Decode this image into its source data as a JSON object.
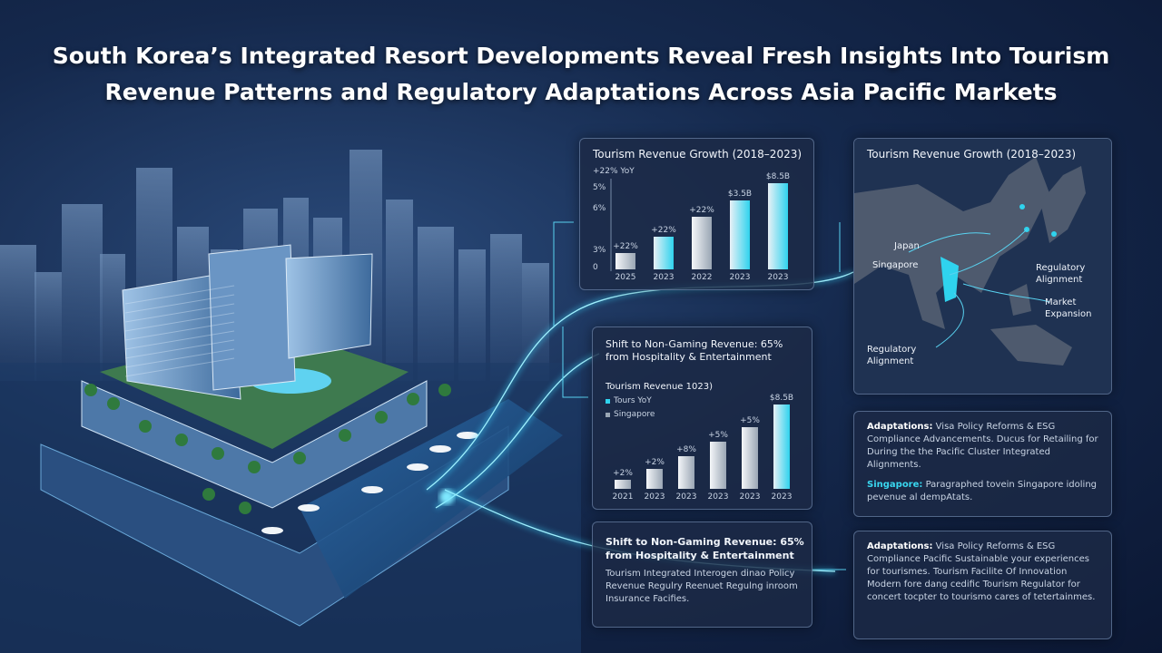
{
  "header": {
    "title_lines": [
      "South Korea’s Integrated Resort Developments Reveal Fresh Insights Into Tourism",
      "Revenue Patterns and Regulatory Adaptations Across Asia Pacific Markets"
    ]
  },
  "growth_chart": {
    "title": "Tourism Revenue Growth (2018–2023)",
    "legend": "+22% YoY",
    "axis_labels": [
      "5%",
      "6%",
      "3%",
      "0"
    ],
    "categories": [
      "2025",
      "2023",
      "2022",
      "2023",
      "2023"
    ],
    "bar_labels": [
      "+22%",
      "+22%",
      "+22%",
      "$3.5B",
      "$8.5B"
    ],
    "values": [
      18,
      36,
      58,
      76,
      95
    ],
    "ylim": [
      0,
      100
    ]
  },
  "shift_chart": {
    "title_lines": [
      "Shift to Non-Gaming Revenue: 65%",
      "from Hospitality & Entertainment"
    ],
    "subtitle": "Tourism Revenue 1023)",
    "legend": [
      "Tours YoY",
      "Singapore"
    ],
    "categories": [
      "2021",
      "2023",
      "2023",
      "2023",
      "2023",
      "2023"
    ],
    "bar_labels": [
      "+2%",
      "+2%",
      "+8%",
      "+5%",
      "+5%",
      "$8.5B"
    ],
    "values": [
      10,
      22,
      36,
      52,
      68,
      93
    ],
    "ylim": [
      0,
      100
    ]
  },
  "shift_note": {
    "title_lines": [
      "Shift to Non-Gaming Revenue: 65%",
      "from Hospitality & Entertainment"
    ],
    "body": "Tourism Integrated Interogen dinao Policy Revenue Regulry Reenuet Regulng inroom Insurance Facifies."
  },
  "map_panel": {
    "title": "Tourism Revenue Growth (2018–2023)",
    "labels": [
      "Japan",
      "Singapore",
      "Regulatory Alignment",
      "Market Expansion",
      "Regulatory Alignment"
    ]
  },
  "adaptations_1": {
    "lead": "Adaptations:",
    "text": "Visa Policy Reforms & ESG Compliance Advancements. Ducus for Retailing for During the the Pacific Cluster Integrated Alignments.",
    "lead_2": "Singapore:",
    "text_2": "Paragraphed tovein Singapore idoling pevenue al dempAtats."
  },
  "adaptations_2": {
    "lead": "Adaptations:",
    "text": "Visa Policy Reforms & ESG Compliance Pacific Sustainable your experiences for tourismes. Tourism Facilite Of Innovation Modern fore dang cedific Tourism Regulator for concert tocpter to tourismo cares of tetertainmes."
  }
}
